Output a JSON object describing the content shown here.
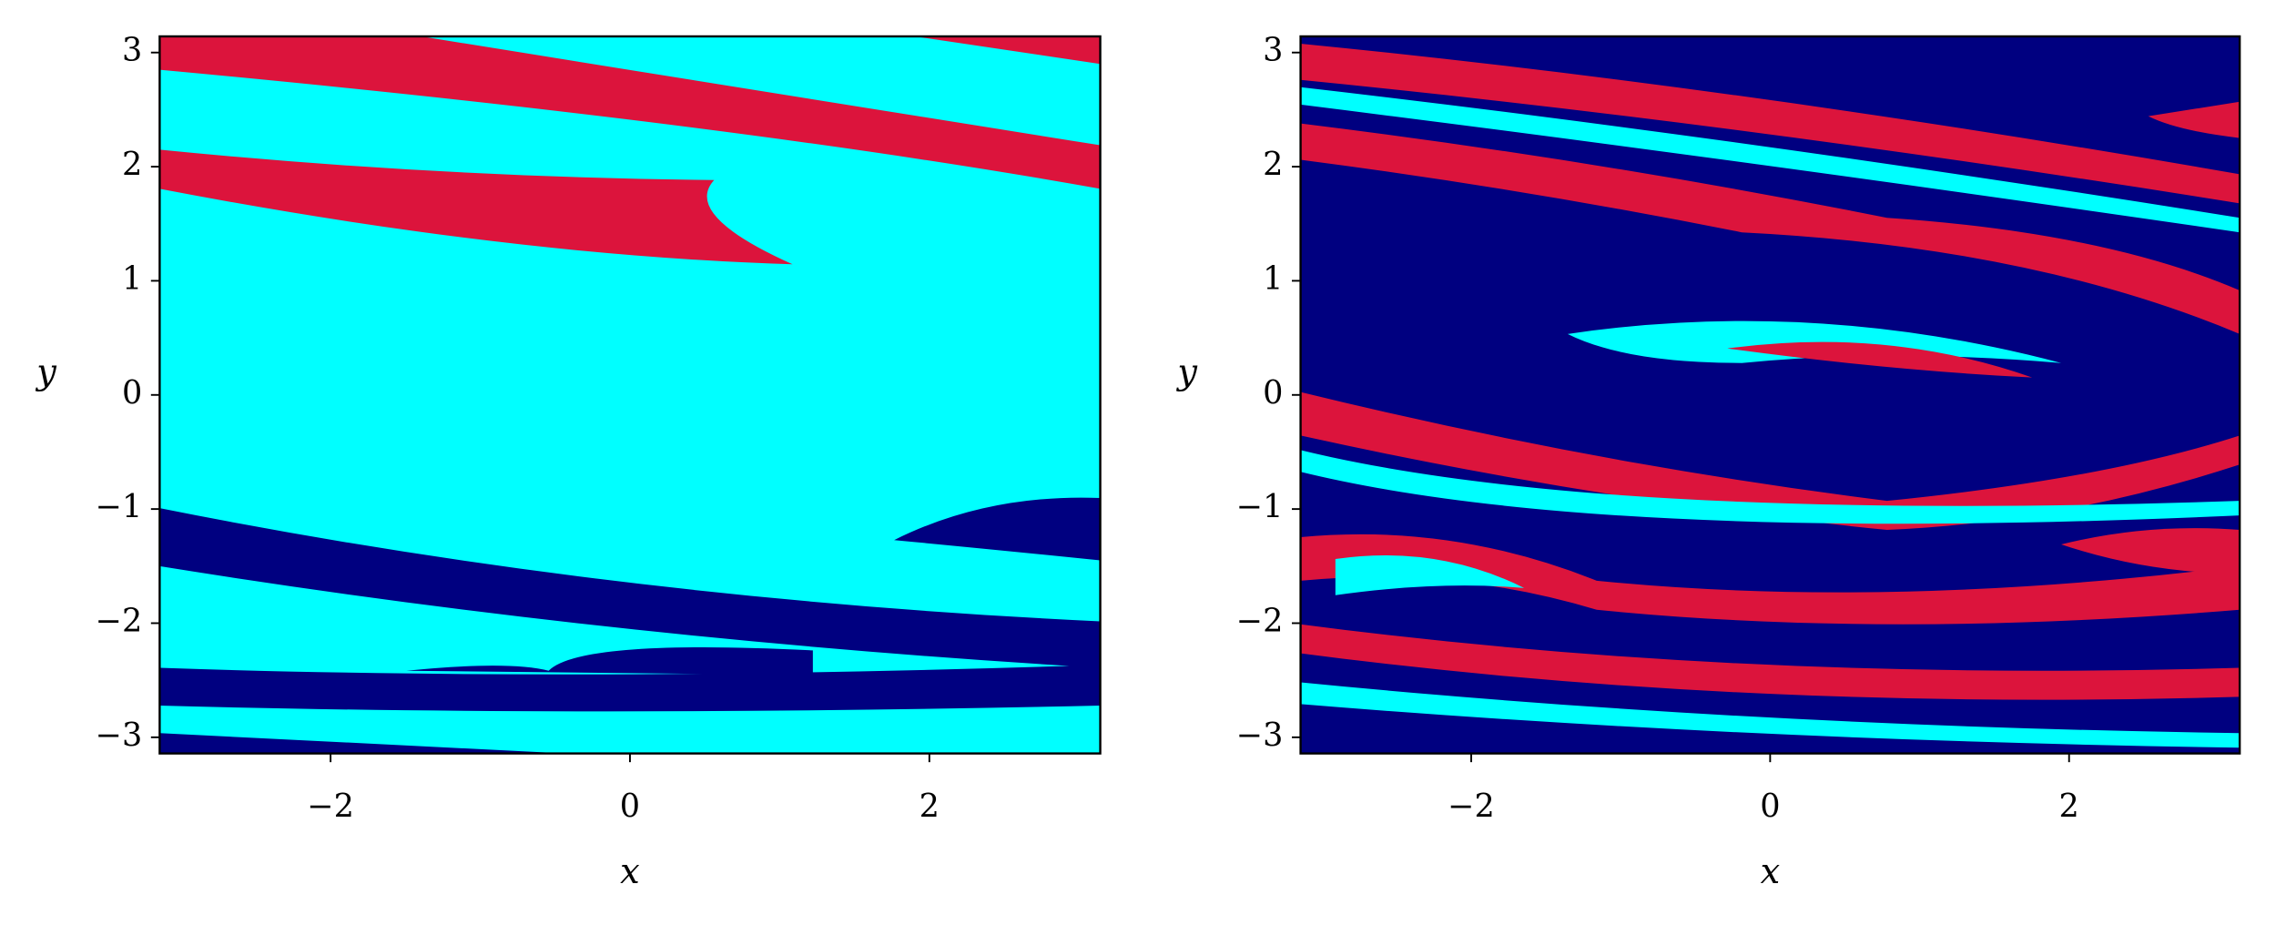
{
  "chart_data": [
    {
      "type": "heatmap",
      "xlabel": "x",
      "ylabel": "y",
      "xlim": [
        -3.1416,
        3.1416
      ],
      "ylim": [
        -3.1416,
        3.1416
      ],
      "xticks": [
        {
          "value": -2,
          "label": "−2"
        },
        0,
        2
      ],
      "yticks": [
        {
          "value": -3,
          "label": "−3"
        },
        {
          "value": -2,
          "label": "−2"
        },
        {
          "value": -1,
          "label": "−1"
        },
        0,
        1,
        2,
        3
      ],
      "colors": [
        "#000080",
        "#00ffff",
        "#dc143c"
      ]
    },
    {
      "type": "heatmap",
      "xlabel": "x",
      "ylabel": "y",
      "xlim": [
        -3.1416,
        3.1416
      ],
      "ylim": [
        -3.1416,
        3.1416
      ],
      "xticks": [
        {
          "value": -2,
          "label": "−2"
        },
        0,
        2
      ],
      "yticks": [
        {
          "value": -3,
          "label": "−3"
        },
        {
          "value": -2,
          "label": "−2"
        },
        {
          "value": -1,
          "label": "−1"
        },
        0,
        1,
        2,
        3
      ],
      "colors": [
        "#000080",
        "#00ffff",
        "#dc143c"
      ]
    }
  ]
}
